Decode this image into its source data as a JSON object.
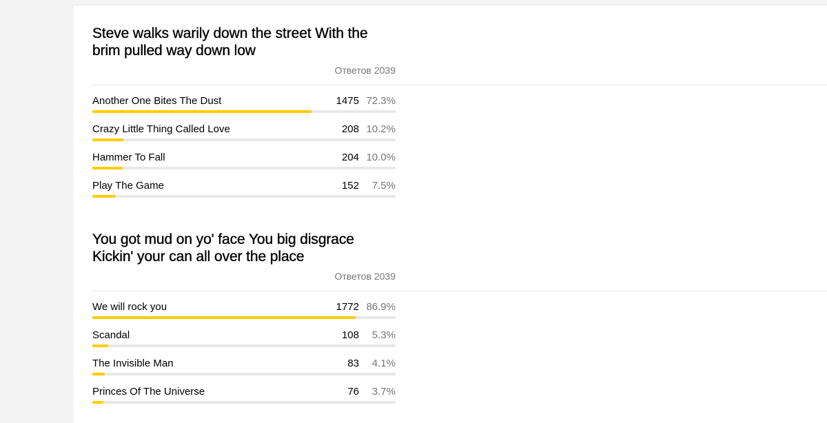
{
  "colors": {
    "bar_fill": "#ffcc00",
    "bar_track": "#e8e8e8",
    "muted_text": "#777777"
  },
  "polls": [
    {
      "question": "Steve walks warily down the street With the brim pulled way down low",
      "total_label": "Ответов",
      "total_value": "2039",
      "options": [
        {
          "label": "Another One Bites The Dust",
          "count": "1475",
          "percent": "72.3%",
          "fraction": 0.723
        },
        {
          "label": "Crazy Little Thing Called Love",
          "count": "208",
          "percent": "10.2%",
          "fraction": 0.102
        },
        {
          "label": "Hammer To Fall",
          "count": "204",
          "percent": "10.0%",
          "fraction": 0.1
        },
        {
          "label": "Play The Game",
          "count": "152",
          "percent": "7.5%",
          "fraction": 0.075
        }
      ]
    },
    {
      "question": "You got mud on yo' face You big disgrace Kickin' your can all over the place",
      "total_label": "Ответов",
      "total_value": "2039",
      "options": [
        {
          "label": "We will rock you",
          "count": "1772",
          "percent": "86.9%",
          "fraction": 0.869
        },
        {
          "label": "Scandal",
          "count": "108",
          "percent": "5.3%",
          "fraction": 0.053
        },
        {
          "label": "The Invisible Man",
          "count": "83",
          "percent": "4.1%",
          "fraction": 0.041
        },
        {
          "label": "Princes Of The Universe",
          "count": "76",
          "percent": "3.7%",
          "fraction": 0.037
        }
      ]
    }
  ]
}
